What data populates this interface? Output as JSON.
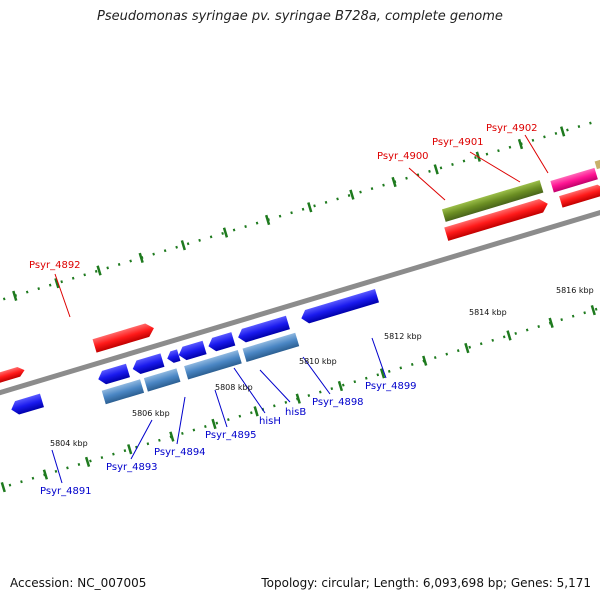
{
  "title": "Pseudomonas syringae pv. syringae B728a, complete genome",
  "footer": {
    "accession": "Accession: NC_007005",
    "topology": "Topology: circular; Length: 6,093,698 bp; Genes: 5,171"
  },
  "colors": {
    "backbone": "#8c8c8c",
    "tick": "#1e7a1e",
    "red_gene": "#ff1a1a",
    "blue_gene": "#1a1aee",
    "steel_gene": "#4a86c4",
    "olive_gene": "#6b8e23",
    "magenta_gene": "#ff1493",
    "red_label": "#dd0000",
    "blue_label": "#0000cc"
  },
  "scale_labels": [
    "5804 kbp",
    "5806 kbp",
    "5808 kbp",
    "5810 kbp",
    "5812 kbp",
    "5814 kbp",
    "5816 kbp"
  ],
  "gene_labels_top": [
    "Psyr_4892",
    "Psyr_4900",
    "Psyr_4901",
    "Psyr_4902"
  ],
  "gene_labels_bottom": [
    "Psyr_4891",
    "Psyr_4893",
    "Psyr_4894",
    "Psyr_4895",
    "hisH",
    "hisB",
    "Psyr_4898",
    "Psyr_4899"
  ]
}
